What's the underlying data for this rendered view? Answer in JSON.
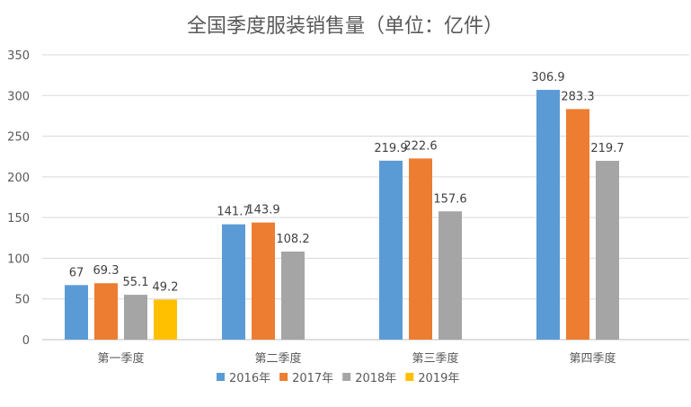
{
  "chart_data": {
    "type": "bar",
    "title": "全国季度服装销售量（单位：亿件）",
    "categories": [
      "第一季度",
      "第二季度",
      "第三季度",
      "第四季度"
    ],
    "series": [
      {
        "name": "2016年",
        "color": "#5B9BD5",
        "values": [
          67,
          141.7,
          219.9,
          306.9
        ]
      },
      {
        "name": "2017年",
        "color": "#ED7D31",
        "values": [
          69.3,
          143.9,
          222.6,
          283.3
        ]
      },
      {
        "name": "2018年",
        "color": "#A5A5A5",
        "values": [
          55.1,
          108.2,
          157.6,
          219.7
        ]
      },
      {
        "name": "2019年",
        "color": "#FFC000",
        "values": [
          49.2,
          null,
          null,
          null
        ]
      }
    ],
    "ylim": [
      0,
      350
    ],
    "yticks": [
      0,
      50,
      100,
      150,
      200,
      250,
      300,
      350
    ],
    "grid": true,
    "legend": "bottom",
    "data_labels": true
  }
}
